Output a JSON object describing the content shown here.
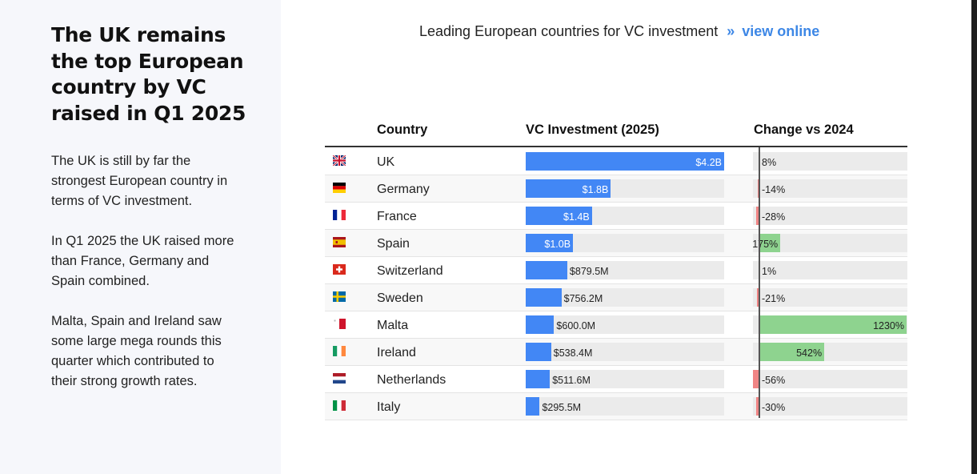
{
  "left_panel": {
    "headline": "The UK remains the top European country by VC raised in Q1 2025",
    "paragraphs": [
      "The UK is still by far the strongest European country in terms of VC investment.",
      "In Q1 2025 the UK raised more than France, Germany and Spain combined.",
      "Malta, Spain and Ireland saw some large mega rounds this quarter which contributed to their strong growth rates."
    ]
  },
  "chart_data": {
    "type": "table",
    "title": "Leading European countries for VC investment",
    "title_arrows": "»",
    "link_text": "view online",
    "columns": [
      "Country",
      "VC Investment (2025)",
      "Change vs 2024"
    ],
    "rows": [
      {
        "country": "UK",
        "value": 4200,
        "value_label": "$4.2B",
        "change": 8,
        "change_label": "8%"
      },
      {
        "country": "Germany",
        "value": 1800,
        "value_label": "$1.8B",
        "change": -14,
        "change_label": "-14%"
      },
      {
        "country": "France",
        "value": 1400,
        "value_label": "$1.4B",
        "change": -28,
        "change_label": "-28%"
      },
      {
        "country": "Spain",
        "value": 1000,
        "value_label": "$1.0B",
        "change": 175,
        "change_label": "175%"
      },
      {
        "country": "Switzerland",
        "value": 879.5,
        "value_label": "$879.5M",
        "change": 1,
        "change_label": "1%"
      },
      {
        "country": "Sweden",
        "value": 756.2,
        "value_label": "$756.2M",
        "change": -21,
        "change_label": "-21%"
      },
      {
        "country": "Malta",
        "value": 600.0,
        "value_label": "$600.0M",
        "change": 1230,
        "change_label": "1230%"
      },
      {
        "country": "Ireland",
        "value": 538.4,
        "value_label": "$538.4M",
        "change": 542,
        "change_label": "542%"
      },
      {
        "country": "Netherlands",
        "value": 511.6,
        "value_label": "$511.6M",
        "change": -56,
        "change_label": "-56%"
      },
      {
        "country": "Italy",
        "value": 295.5,
        "value_label": "$295.5M",
        "change": -30,
        "change_label": "-30%"
      }
    ],
    "value_max": 4200,
    "change_range": [
      -56,
      1230
    ],
    "colors": {
      "value_bar": "#4287f5",
      "positive": "#8ed38f",
      "negative": "#f08585",
      "track": "#ebebeb",
      "link": "#3d87e6"
    }
  }
}
